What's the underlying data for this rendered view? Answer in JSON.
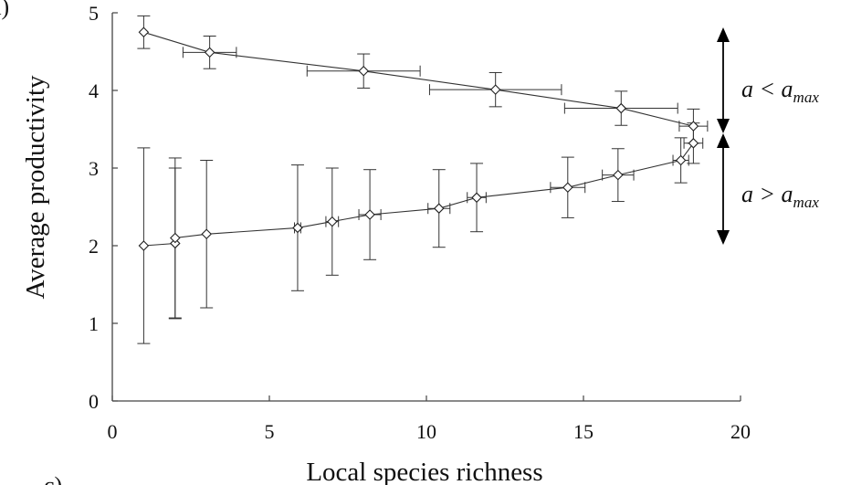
{
  "chart_data": {
    "type": "line",
    "xlabel": "Local species richness",
    "ylabel": "Average productivity",
    "xlim": [
      0,
      20
    ],
    "ylim": [
      0,
      5
    ],
    "xticks": [
      "0",
      "5",
      "10",
      "15",
      "20"
    ],
    "yticks": [
      "0",
      "1",
      "2",
      "3",
      "4",
      "5"
    ],
    "grid": false,
    "panel_labels": {
      "top": "a)",
      "bottom": "c)"
    },
    "series": [
      {
        "marker": "open-diamond",
        "points": [
          {
            "x": 1.0,
            "y": 4.75,
            "yerr": 0.21,
            "xerr": 0.0
          },
          {
            "x": 3.1,
            "y": 4.49,
            "yerr": 0.21,
            "xerr": 0.85
          },
          {
            "x": 8.0,
            "y": 4.25,
            "yerr": 0.22,
            "xerr": 1.8
          },
          {
            "x": 12.2,
            "y": 4.01,
            "yerr": 0.22,
            "xerr": 2.1
          },
          {
            "x": 16.2,
            "y": 3.77,
            "yerr": 0.22,
            "xerr": 1.8
          },
          {
            "x": 18.5,
            "y": 3.54,
            "yerr": 0.22,
            "xerr": 0.45
          }
        ]
      },
      {
        "marker": "open-diamond",
        "points": [
          {
            "x": 1.0,
            "y": 2.0,
            "yerr": 1.26,
            "xerr": 0.0
          },
          {
            "x": 2.0,
            "y": 2.03,
            "yerr": 0.97,
            "xerr": 0.0
          },
          {
            "x": 2.0,
            "y": 2.1,
            "yerr": 1.03,
            "xerr": 0.0
          },
          {
            "x": 3.0,
            "y": 2.15,
            "yerr": 0.95,
            "xerr": 0.0
          },
          {
            "x": 5.9,
            "y": 2.23,
            "yerr": 0.81,
            "xerr": 0.1
          },
          {
            "x": 7.0,
            "y": 2.31,
            "yerr": 0.69,
            "xerr": 0.2
          },
          {
            "x": 8.2,
            "y": 2.4,
            "yerr": 0.58,
            "xerr": 0.35
          },
          {
            "x": 10.4,
            "y": 2.48,
            "yerr": 0.5,
            "xerr": 0.35
          },
          {
            "x": 11.6,
            "y": 2.62,
            "yerr": 0.44,
            "xerr": 0.3
          },
          {
            "x": 14.5,
            "y": 2.75,
            "yerr": 0.39,
            "xerr": 0.55
          },
          {
            "x": 16.1,
            "y": 2.91,
            "yerr": 0.34,
            "xerr": 0.5
          },
          {
            "x": 18.1,
            "y": 3.1,
            "yerr": 0.29,
            "xerr": 0.25
          },
          {
            "x": 18.5,
            "y": 3.32,
            "yerr": 0.26,
            "xerr": 0.3
          }
        ]
      }
    ],
    "annotations": [
      {
        "base": "a < a",
        "sub": "max"
      },
      {
        "base": "a > a",
        "sub": "max"
      }
    ]
  }
}
